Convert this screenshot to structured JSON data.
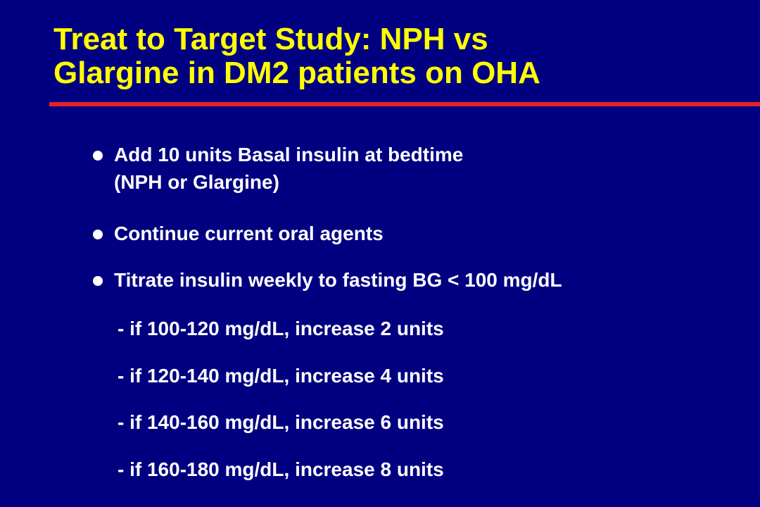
{
  "slide": {
    "title_lines": [
      "Treat to Target Study: NPH vs",
      "Glargine in DM2 patients on OHA"
    ],
    "bullets": [
      {
        "lines": [
          "Add 10 units Basal insulin at bedtime",
          "(NPH or Glargine)"
        ]
      },
      {
        "lines": [
          "Continue current oral agents"
        ]
      },
      {
        "lines": [
          "Titrate insulin weekly to fasting BG < 100 mg/dL"
        ]
      }
    ],
    "sub_items": [
      "- if 100-120 mg/dL, increase 2 units",
      "- if 120-140 mg/dL, increase 4 units",
      "- if 140-160 mg/dL, increase 6 units",
      "- if 160-180 mg/dL, increase 8 units"
    ]
  },
  "colors": {
    "background": "#000080",
    "title": "#FFFF00",
    "rule": "#E8202A",
    "body_text": "#FFFFFF"
  }
}
